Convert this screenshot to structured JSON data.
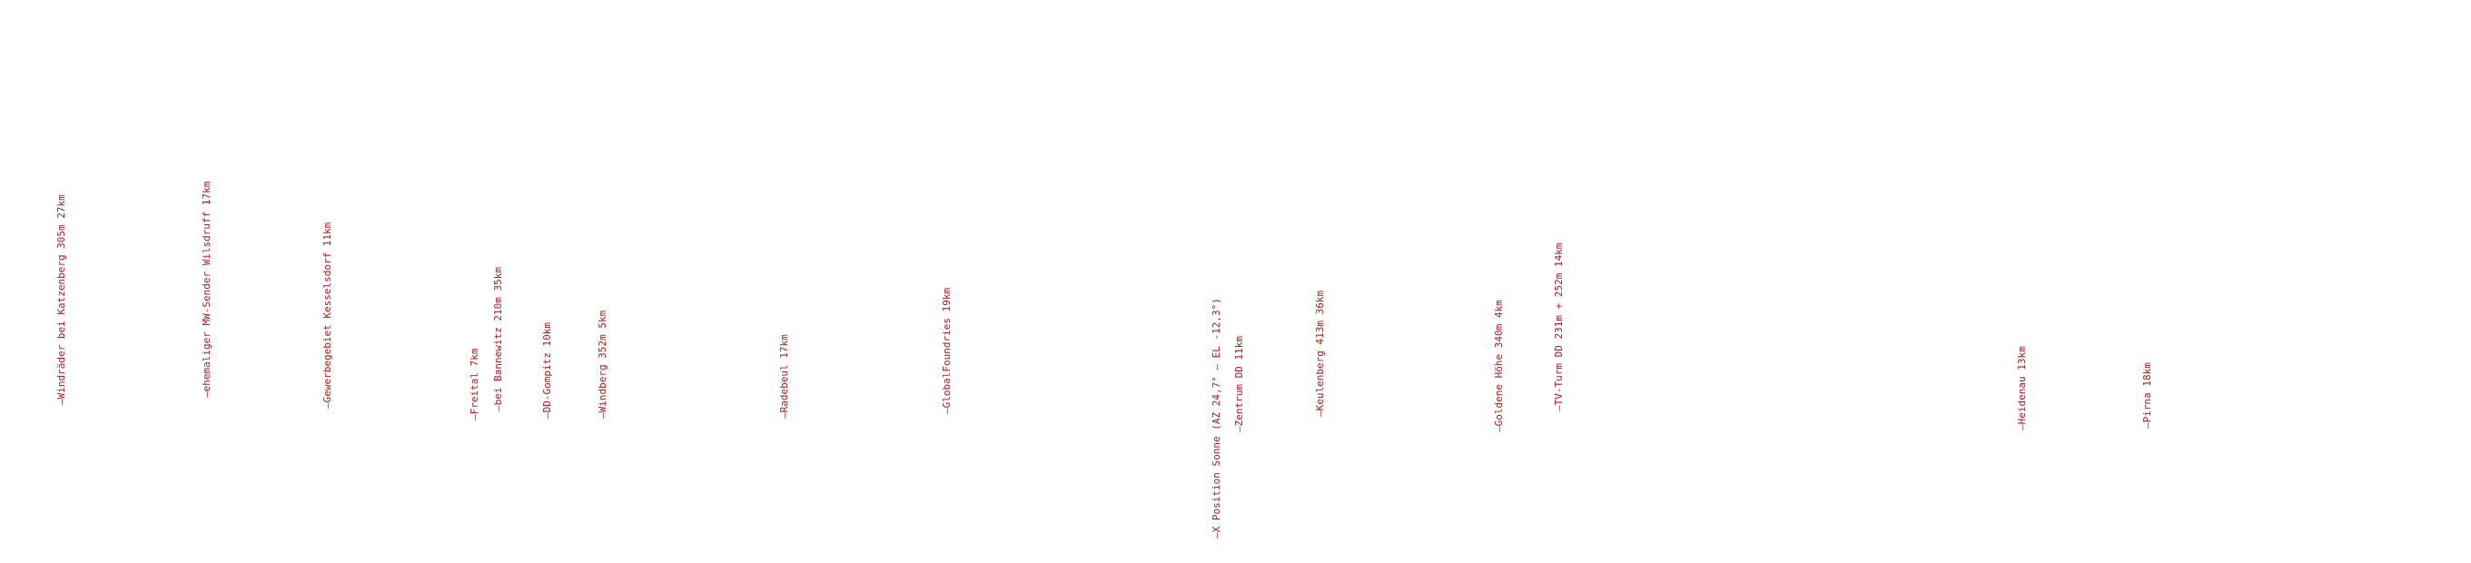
{
  "colors": {
    "marker_text": "#b01c1c",
    "background": "#ffffff"
  },
  "markers": [
    {
      "label": "—Windräder bei Katzenberg 305m 27km"
    },
    {
      "label": "—ehemaliger MW-Sender Wilsdruff 17km"
    },
    {
      "label": "—Gewerbegebiet Kesselsdorf 11km"
    },
    {
      "label": "—Freital 7km"
    },
    {
      "label": "—bei Bannewitz 210m 35km"
    },
    {
      "label": "—DD-Gompitz 10km"
    },
    {
      "label": "—Windberg 352m 5km"
    },
    {
      "label": "—Radebeul 17km"
    },
    {
      "label": "—GlobalFoundries 19km"
    },
    {
      "label": "—X Position Sonne (AZ 24,7° – EL -12,3°)"
    },
    {
      "label": "—Zentrum DD 11km"
    },
    {
      "label": "—Keulenberg 413m 36km"
    },
    {
      "label": "—Goldene Höhe 340m 4km"
    },
    {
      "label": "—TV-Turm DD 231m + 252m 14km"
    },
    {
      "label": "—Heidenau 13km"
    },
    {
      "label": "—Pirna 18km"
    }
  ]
}
